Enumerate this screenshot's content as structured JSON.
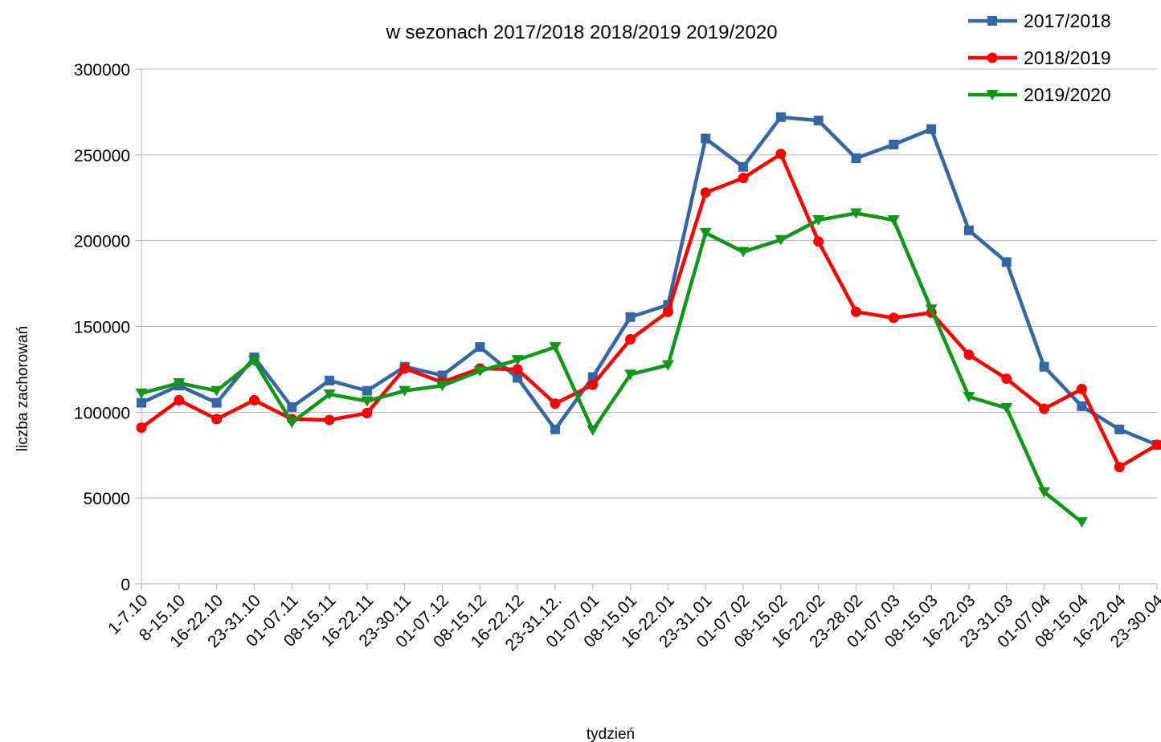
{
  "chart_data": {
    "type": "line",
    "title": "w sezonach 2017/2018 2018/2019 2019/2020",
    "xlabel": "tydzień",
    "ylabel": "liczba zachorowań",
    "ylim": [
      0,
      300000
    ],
    "yticks": [
      "0",
      "50000",
      "100000",
      "150000",
      "200000",
      "250000",
      "300000"
    ],
    "grid": "horizontal",
    "legend": "top-right",
    "categories": [
      "1-7.10",
      "8-15.10",
      "16-22.10",
      "23-31.10",
      "01-07.11",
      "08-15.11",
      "16-22.11",
      "23-30.11",
      "01-07.12",
      "08-15.12",
      "16-22.12",
      "23-31.12.",
      "01-07.01",
      "08-15.01",
      "16-22.01",
      "23-31.01",
      "01-07.02",
      "08-15.02",
      "16-22.02",
      "23-28.02",
      "01-07.03",
      "08-15.03",
      "16-22.03",
      "23-31.03",
      "01-07.04",
      "08-15.04",
      "16-22.04",
      "23-30.04"
    ],
    "series": [
      {
        "name": "2017/2018",
        "color": "#3465a4",
        "marker": "square",
        "values": [
          105500,
          115500,
          105500,
          132000,
          103000,
          118500,
          112500,
          126500,
          121500,
          138000,
          120000,
          90000,
          120500,
          155500,
          162500,
          259500,
          243000,
          272000,
          270000,
          248000,
          256000,
          265000,
          206000,
          187500,
          126500,
          103500,
          90000,
          81000
        ]
      },
      {
        "name": "2018/2019",
        "color": "#ff0000",
        "marker": "circle",
        "values": [
          91000,
          107000,
          96000,
          107000,
          96000,
          95500,
          99500,
          125500,
          117500,
          125500,
          125000,
          105000,
          116000,
          142500,
          158500,
          228000,
          236500,
          250500,
          199500,
          158500,
          155000,
          158000,
          133500,
          119500,
          102000,
          113500,
          68000,
          81000
        ]
      },
      {
        "name": "2019/2020",
        "color": "#109618",
        "marker": "triangle-down",
        "values": [
          111000,
          117000,
          112500,
          130000,
          94000,
          110500,
          106500,
          112500,
          115500,
          124000,
          130500,
          138000,
          89500,
          122000,
          127500,
          204500,
          193500,
          200500,
          212000,
          216000,
          212000,
          160000,
          109000,
          102500,
          53500,
          36000,
          null,
          null
        ]
      }
    ]
  }
}
